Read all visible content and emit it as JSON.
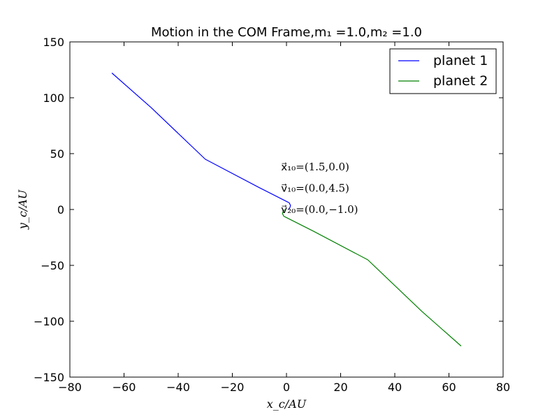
{
  "chart_data": {
    "type": "line",
    "title": "Motion in the COM Frame,m₁ =1.0,m₂ =1.0",
    "xlabel": "x_c/AU",
    "ylabel": "y_c/AU",
    "xlim": [
      -80,
      80
    ],
    "ylim": [
      -150,
      150
    ],
    "xticks": [
      -80,
      -60,
      -40,
      -20,
      0,
      20,
      40,
      60,
      80
    ],
    "yticks": [
      -150,
      -100,
      -50,
      0,
      50,
      100,
      150
    ],
    "xtick_labels": [
      "−80",
      "−60",
      "−40",
      "−20",
      "0",
      "20",
      "40",
      "60",
      "80"
    ],
    "ytick_labels": [
      "−150",
      "−100",
      "−50",
      "0",
      "50",
      "100",
      "150"
    ],
    "grid": false,
    "legend_position": "top-right",
    "series": [
      {
        "name": "planet 1",
        "color": "#0000ff",
        "x": [
          0.75,
          1.2,
          1.5,
          1.0,
          0.2,
          -10,
          -30,
          -50,
          -64.5
        ],
        "y": [
          0.0,
          1.5,
          3.5,
          6.0,
          7.0,
          19.5,
          45.0,
          91.2,
          122.2
        ]
      },
      {
        "name": "planet 2",
        "color": "#008000",
        "x": [
          -0.75,
          -1.2,
          -1.5,
          -1.0,
          -0.2,
          10,
          30,
          50,
          64.5
        ],
        "y": [
          0.0,
          -1.5,
          -3.5,
          -6.0,
          -7.0,
          -19.5,
          -45.0,
          -91.2,
          -122.2
        ]
      }
    ],
    "annotations": [
      {
        "text": "x⃗₁₀=(1.5,0.0)",
        "x": -2,
        "y": 38
      },
      {
        "text": "v⃗₁₀=(0.0,4.5)",
        "x": -2,
        "y": 19
      },
      {
        "text": "v⃗₂₀=(0.0,−1.0)",
        "x": -2,
        "y": 0
      }
    ]
  }
}
